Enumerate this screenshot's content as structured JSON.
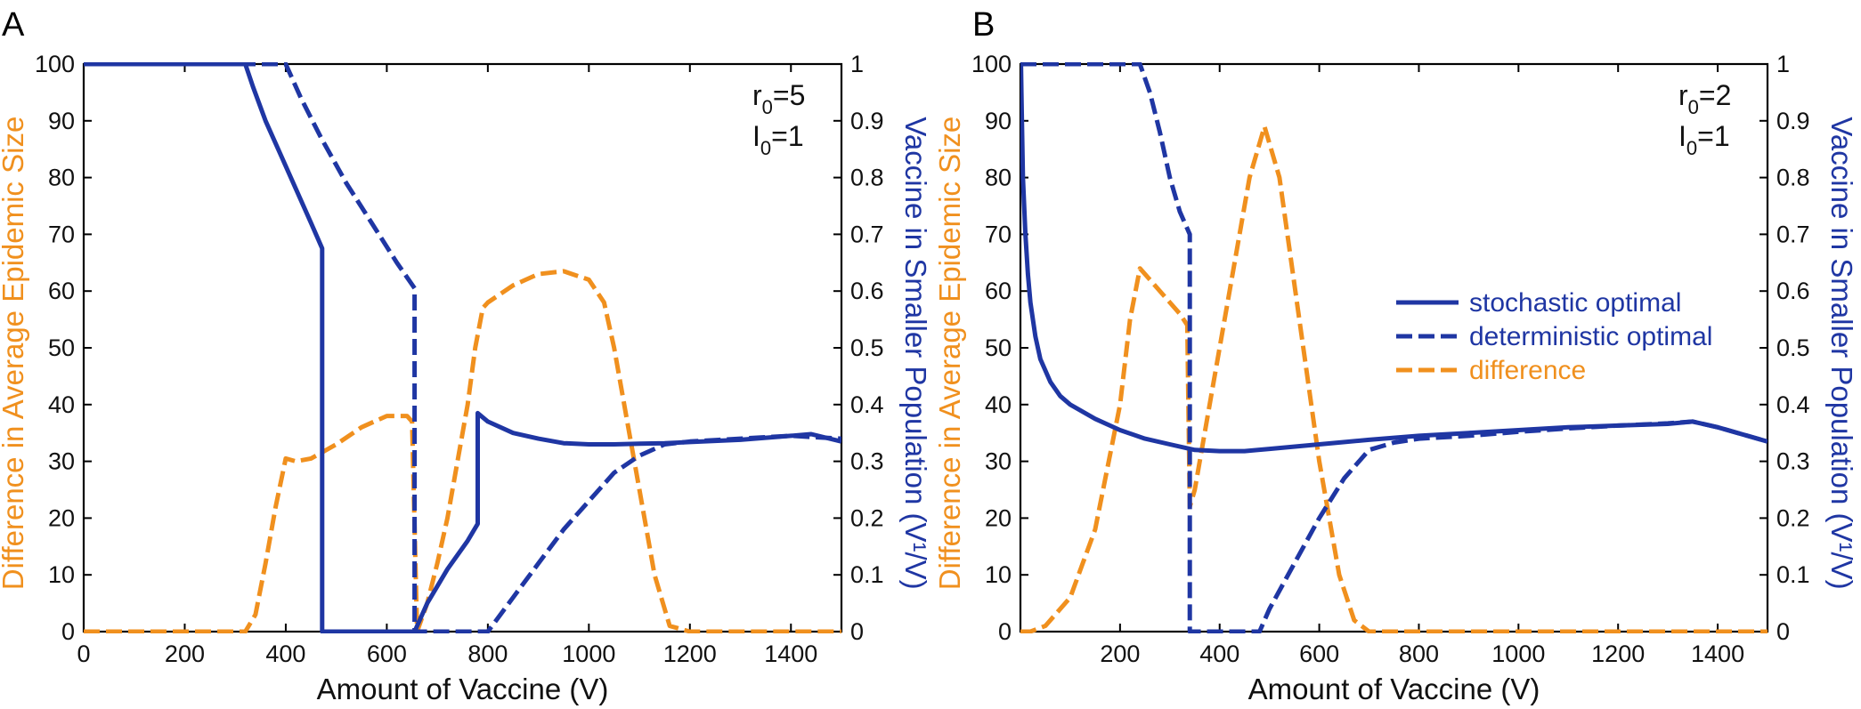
{
  "colors": {
    "stochastic": "#1f36a3",
    "deterministic": "#1f36a3",
    "difference": "#f0901e",
    "axis": "#000000"
  },
  "chart_data": [
    {
      "panel": "A",
      "type": "line",
      "xlabel": "Amount of Vaccine (V)",
      "ylabel_left": "Difference in Average Epidemic Size",
      "ylabel_right": "Vaccine in Smaller Population (V¹/V)",
      "xlim": [
        0,
        1500
      ],
      "ylim_left": [
        0,
        100
      ],
      "ylim_right": [
        0,
        1
      ],
      "xticks": [
        "0",
        "200",
        "400",
        "600",
        "800",
        "1000",
        "1200",
        "1400"
      ],
      "yticks_left": [
        "0",
        "10",
        "20",
        "30",
        "40",
        "50",
        "60",
        "70",
        "80",
        "90",
        "100"
      ],
      "yticks_right": [
        "0",
        "0.1",
        "0.2",
        "0.3",
        "0.4",
        "0.5",
        "0.6",
        "0.7",
        "0.8",
        "0.9",
        "1"
      ],
      "annotation": {
        "r_label": "r",
        "r_sub": "0",
        "r_value": "=5",
        "i_label": "I",
        "i_sub": "0",
        "i_value": "=1"
      },
      "series": [
        {
          "name": "stochastic optimal",
          "axis": "right",
          "style": "solid",
          "x": [
            0,
            320,
            335,
            360,
            390,
            420,
            450,
            472,
            472,
            655,
            680,
            720,
            760,
            780,
            780,
            800,
            850,
            900,
            950,
            1000,
            1050,
            1100,
            1150,
            1200,
            1300,
            1400,
            1440,
            1500
          ],
          "y": [
            1.0,
            1.0,
            0.96,
            0.9,
            0.84,
            0.78,
            0.72,
            0.675,
            0.0,
            0.0,
            0.05,
            0.11,
            0.16,
            0.19,
            0.385,
            0.37,
            0.35,
            0.34,
            0.332,
            0.33,
            0.33,
            0.331,
            0.332,
            0.334,
            0.338,
            0.345,
            0.348,
            0.335
          ]
        },
        {
          "name": "deterministic optimal",
          "axis": "right",
          "style": "dashed",
          "x": [
            0,
            400,
            430,
            470,
            520,
            570,
            620,
            655,
            655,
            800,
            850,
            900,
            950,
            1000,
            1050,
            1100,
            1150,
            1200,
            1300,
            1400,
            1500
          ],
          "y": [
            1.0,
            1.0,
            0.94,
            0.87,
            0.79,
            0.72,
            0.65,
            0.605,
            0.0,
            0.0,
            0.06,
            0.12,
            0.18,
            0.23,
            0.28,
            0.31,
            0.33,
            0.335,
            0.34,
            0.345,
            0.34
          ]
        },
        {
          "name": "difference",
          "axis": "left",
          "style": "dashed",
          "x": [
            0,
            320,
            340,
            360,
            380,
            400,
            420,
            450,
            500,
            550,
            600,
            640,
            650,
            660,
            680,
            700,
            720,
            740,
            760,
            775,
            790,
            800,
            850,
            900,
            950,
            1000,
            1030,
            1050,
            1080,
            1100,
            1130,
            1160,
            1200,
            1300,
            1400,
            1500
          ],
          "y": [
            0,
            0,
            3,
            12,
            22,
            30.5,
            30,
            30.5,
            33,
            36,
            38,
            38,
            37,
            0,
            5,
            12,
            20,
            30,
            40,
            50,
            57,
            58,
            61,
            63,
            63.5,
            62,
            58,
            50,
            35,
            25,
            10,
            1,
            0,
            0,
            0,
            0
          ]
        }
      ]
    },
    {
      "panel": "B",
      "type": "line",
      "xlabel": "Amount of Vaccine (V)",
      "ylabel_left": "Difference in Average Epidemic Size",
      "ylabel_right": "Vaccine in Smaller Population (V¹/V)",
      "xlim": [
        0,
        1500
      ],
      "ylim_left": [
        0,
        100
      ],
      "ylim_right": [
        0,
        1
      ],
      "xticks": [
        "200",
        "400",
        "600",
        "800",
        "1000",
        "1200",
        "1400"
      ],
      "yticks_left": [
        "0",
        "10",
        "20",
        "30",
        "40",
        "50",
        "60",
        "70",
        "80",
        "90",
        "100"
      ],
      "yticks_right": [
        "0",
        "0.1",
        "0.2",
        "0.3",
        "0.4",
        "0.5",
        "0.6",
        "0.7",
        "0.8",
        "0.9",
        "1"
      ],
      "annotation": {
        "r_label": "r",
        "r_sub": "0",
        "r_value": "=2",
        "i_label": "I",
        "i_sub": "0",
        "i_value": "=1"
      },
      "legend": [
        "stochastic optimal",
        "deterministic optimal",
        "difference"
      ],
      "series": [
        {
          "name": "stochastic optimal",
          "axis": "right",
          "style": "solid",
          "x": [
            1,
            2,
            5,
            10,
            15,
            20,
            30,
            40,
            60,
            80,
            100,
            150,
            200,
            250,
            300,
            350,
            400,
            450,
            500,
            600,
            700,
            800,
            900,
            1000,
            1100,
            1200,
            1300,
            1350,
            1400,
            1500
          ],
          "y": [
            1.0,
            0.95,
            0.8,
            0.7,
            0.63,
            0.58,
            0.52,
            0.48,
            0.44,
            0.415,
            0.4,
            0.375,
            0.355,
            0.34,
            0.33,
            0.32,
            0.318,
            0.318,
            0.322,
            0.33,
            0.338,
            0.345,
            0.35,
            0.355,
            0.36,
            0.363,
            0.366,
            0.37,
            0.36,
            0.335
          ]
        },
        {
          "name": "deterministic optimal",
          "axis": "right",
          "style": "dashed",
          "x": [
            0,
            240,
            260,
            280,
            300,
            320,
            340,
            340,
            480,
            500,
            550,
            600,
            650,
            700,
            750,
            800,
            900,
            1000,
            1100,
            1200,
            1300,
            1350,
            1400,
            1500
          ],
          "y": [
            1.0,
            1.0,
            0.95,
            0.88,
            0.8,
            0.74,
            0.7,
            0.0,
            0.0,
            0.04,
            0.12,
            0.2,
            0.27,
            0.32,
            0.333,
            0.34,
            0.345,
            0.352,
            0.358,
            0.363,
            0.367,
            0.37,
            0.36,
            0.335
          ]
        },
        {
          "name": "difference",
          "axis": "left",
          "style": "dashed",
          "x": [
            0,
            20,
            50,
            100,
            150,
            200,
            220,
            240,
            260,
            300,
            320,
            335,
            340,
            350,
            380,
            420,
            460,
            490,
            520,
            560,
            600,
            640,
            670,
            700,
            800,
            900,
            1000,
            1500
          ],
          "y": [
            0,
            0,
            1,
            6,
            18,
            40,
            55,
            64,
            62,
            58,
            56,
            54,
            22,
            25,
            40,
            60,
            80,
            89,
            80,
            55,
            30,
            10,
            2,
            0,
            0,
            0,
            0,
            0
          ]
        }
      ]
    }
  ]
}
